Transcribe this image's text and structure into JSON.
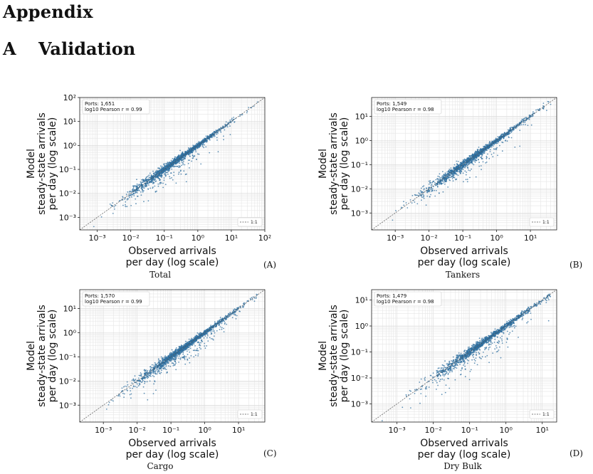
{
  "heading": {
    "appendix": "Appendix",
    "section_num": "A",
    "section_title": "Validation"
  },
  "panels": [
    {
      "label": "(A)",
      "caption": "Total"
    },
    {
      "label": "(B)",
      "caption": "Tankers"
    },
    {
      "label": "(C)",
      "caption": "Cargo"
    },
    {
      "label": "(D)",
      "caption": "Dry Bulk"
    }
  ],
  "colors": {
    "points": "#2f6f9f",
    "diagonal": "#555555",
    "grid": "#e6e6e6"
  },
  "chart_data": [
    {
      "type": "scatter",
      "title": "",
      "xlabel": [
        "Observed arrivals",
        "per day (log scale)"
      ],
      "ylabel": [
        "Model",
        "steady-state arrivals",
        "per day (log scale)"
      ],
      "xscale": "log",
      "yscale": "log",
      "xlim": [
        0.0003,
        100
      ],
      "ylim": [
        0.0003,
        100
      ],
      "xticks": [
        "10⁻³",
        "10⁻²",
        "10⁻¹",
        "10⁰",
        "10¹",
        "10²"
      ],
      "yticks": [
        "10⁻³",
        "10⁻²",
        "10⁻¹",
        "10⁰",
        "10¹",
        "10²"
      ],
      "annotation": [
        "Ports: 1,651",
        "log10 Pearson r = 0.99"
      ],
      "legend": {
        "entries": [
          "1:1"
        ],
        "placement": "lower-right"
      },
      "grid": true,
      "n_points": 1651,
      "pearson_r_log10": 0.99
    },
    {
      "type": "scatter",
      "title": "",
      "xlabel": [
        "Observed arrivals",
        "per day (log scale)"
      ],
      "ylabel": [
        "Model",
        "steady-state arrivals",
        "per day (log scale)"
      ],
      "xscale": "log",
      "yscale": "log",
      "xlim": [
        0.0002,
        60
      ],
      "ylim": [
        0.0002,
        60
      ],
      "xticks": [
        "10⁻³",
        "10⁻²",
        "10⁻¹",
        "10⁰",
        "10¹"
      ],
      "yticks": [
        "10⁻³",
        "10⁻²",
        "10⁻¹",
        "10⁰",
        "10¹"
      ],
      "annotation": [
        "Ports: 1,549",
        "log10 Pearson r = 0.98"
      ],
      "legend": {
        "entries": [
          "1:1"
        ],
        "placement": "lower-right"
      },
      "grid": true,
      "n_points": 1549,
      "pearson_r_log10": 0.98
    },
    {
      "type": "scatter",
      "title": "",
      "xlabel": [
        "Observed arrivals",
        "per day (log scale)"
      ],
      "ylabel": [
        "Model",
        "steady-state arrivals",
        "per day (log scale)"
      ],
      "xscale": "log",
      "yscale": "log",
      "xlim": [
        0.0002,
        60
      ],
      "ylim": [
        0.0002,
        60
      ],
      "xticks": [
        "10⁻³",
        "10⁻²",
        "10⁻¹",
        "10⁰",
        "10¹"
      ],
      "yticks": [
        "10⁻³",
        "10⁻²",
        "10⁻¹",
        "10⁰",
        "10¹"
      ],
      "annotation": [
        "Ports: 1,570",
        "log10 Pearson r = 0.99"
      ],
      "legend": {
        "entries": [
          "1:1"
        ],
        "placement": "lower-right"
      },
      "grid": true,
      "n_points": 1570,
      "pearson_r_log10": 0.99
    },
    {
      "type": "scatter",
      "title": "",
      "xlabel": [
        "Observed arrivals",
        "per day (log scale)"
      ],
      "ylabel": [
        "Model",
        "steady-state arrivals",
        "per day (log scale)"
      ],
      "xscale": "log",
      "yscale": "log",
      "xlim": [
        0.0002,
        25
      ],
      "ylim": [
        0.0002,
        25
      ],
      "xticks": [
        "10⁻³",
        "10⁻²",
        "10⁻¹",
        "10⁰",
        "10¹"
      ],
      "yticks": [
        "10⁻³",
        "10⁻²",
        "10⁻¹",
        "10⁰",
        "10¹"
      ],
      "annotation": [
        "Ports: 1,479",
        "log10 Pearson r = 0.98"
      ],
      "legend": {
        "entries": [
          "1:1"
        ],
        "placement": "lower-right"
      },
      "grid": true,
      "n_points": 1479,
      "pearson_r_log10": 0.98
    }
  ]
}
